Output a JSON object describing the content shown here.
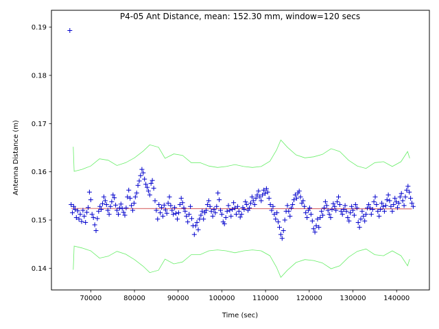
{
  "chart_data": {
    "type": "scatter",
    "title": "P4-05 Ant Distance, mean: 152.30 mm, window=120 secs",
    "xlabel": "Time (sec)",
    "ylabel": "Antenna Distance (m)",
    "xlim": [
      61000,
      147500
    ],
    "ylim": [
      0.1355,
      0.1935
    ],
    "xticks": [
      70000,
      80000,
      90000,
      100000,
      110000,
      120000,
      130000,
      140000
    ],
    "xtick_labels": [
      "70000",
      "80000",
      "90000",
      "100000",
      "110000",
      "120000",
      "130000",
      "140000"
    ],
    "yticks": [
      0.14,
      0.15,
      0.16,
      0.17,
      0.18,
      0.19
    ],
    "ytick_labels": [
      "0.14",
      "0.15",
      "0.16",
      "0.17",
      "0.18",
      "0.19"
    ],
    "grid": false,
    "colors": {
      "points": "#0000cc",
      "mean_line": "#cc3333",
      "band": "#66ee66",
      "axes": "#000000"
    },
    "mean_line": {
      "x": [
        65500,
        143500
      ],
      "y": [
        0.1524,
        0.1523
      ]
    },
    "upper_band": {
      "x": [
        66000,
        66200,
        68000,
        70000,
        72000,
        74000,
        76000,
        78000,
        80000,
        82000,
        83500,
        85500,
        87000,
        89000,
        91000,
        93000,
        95000,
        97000,
        99000,
        101000,
        103000,
        105000,
        107000,
        109000,
        111000,
        112500,
        113500,
        115000,
        117000,
        119000,
        121000,
        123000,
        125000,
        127000,
        129000,
        131000,
        133000,
        135000,
        137000,
        139000,
        141000,
        142500,
        143000
      ],
      "y": [
        0.1652,
        0.1601,
        0.1605,
        0.1612,
        0.1627,
        0.1624,
        0.1613,
        0.1619,
        0.1629,
        0.1643,
        0.1656,
        0.1651,
        0.1628,
        0.1637,
        0.1634,
        0.1619,
        0.1619,
        0.1612,
        0.1609,
        0.1611,
        0.1615,
        0.1611,
        0.1609,
        0.1611,
        0.1622,
        0.1645,
        0.1666,
        0.1651,
        0.1635,
        0.1629,
        0.1631,
        0.1636,
        0.1648,
        0.1642,
        0.1624,
        0.1612,
        0.1607,
        0.1619,
        0.1621,
        0.1611,
        0.1621,
        0.1642,
        0.1628
      ]
    },
    "lower_band": {
      "x": [
        66000,
        66200,
        68000,
        70000,
        72000,
        74000,
        76000,
        78000,
        80000,
        82000,
        83500,
        85500,
        87000,
        89000,
        91000,
        93000,
        95000,
        97000,
        99000,
        101000,
        103000,
        105000,
        107000,
        109000,
        111000,
        112500,
        113500,
        115000,
        117000,
        119000,
        121000,
        123000,
        125000,
        127000,
        129000,
        131000,
        133000,
        135000,
        137000,
        139000,
        141000,
        142500,
        143000
      ],
      "y": [
        0.1397,
        0.1446,
        0.1442,
        0.1436,
        0.1421,
        0.1425,
        0.1435,
        0.1429,
        0.1418,
        0.1404,
        0.1391,
        0.1396,
        0.1419,
        0.1409,
        0.1413,
        0.1428,
        0.1428,
        0.1436,
        0.1438,
        0.1436,
        0.1432,
        0.1436,
        0.1438,
        0.1436,
        0.1426,
        0.1402,
        0.1381,
        0.1396,
        0.1412,
        0.1418,
        0.1416,
        0.1411,
        0.1399,
        0.1405,
        0.1423,
        0.1435,
        0.144,
        0.1428,
        0.1426,
        0.1436,
        0.1426,
        0.1405,
        0.1419
      ]
    },
    "points": [
      [
        65200,
        0.1893
      ],
      [
        65500,
        0.1532
      ],
      [
        65800,
        0.1515
      ],
      [
        66100,
        0.1528
      ],
      [
        66400,
        0.1522
      ],
      [
        66700,
        0.1505
      ],
      [
        67000,
        0.1519
      ],
      [
        67300,
        0.1502
      ],
      [
        67600,
        0.1512
      ],
      [
        67900,
        0.1497
      ],
      [
        68200,
        0.152
      ],
      [
        68500,
        0.1508
      ],
      [
        68800,
        0.1495
      ],
      [
        69100,
        0.1516
      ],
      [
        69400,
        0.1526
      ],
      [
        69700,
        0.1558
      ],
      [
        70000,
        0.1542
      ],
      [
        70300,
        0.1512
      ],
      [
        70600,
        0.1505
      ],
      [
        70900,
        0.149
      ],
      [
        71200,
        0.1478
      ],
      [
        71500,
        0.1503
      ],
      [
        71800,
        0.1518
      ],
      [
        72100,
        0.1528
      ],
      [
        72400,
        0.1522
      ],
      [
        72700,
        0.1534
      ],
      [
        73000,
        0.1548
      ],
      [
        73300,
        0.154
      ],
      [
        73600,
        0.1532
      ],
      [
        73900,
        0.152
      ],
      [
        74200,
        0.1512
      ],
      [
        74500,
        0.1528
      ],
      [
        74800,
        0.1538
      ],
      [
        75100,
        0.1552
      ],
      [
        75400,
        0.1546
      ],
      [
        75700,
        0.1531
      ],
      [
        76000,
        0.152
      ],
      [
        76300,
        0.1512
      ],
      [
        76600,
        0.1525
      ],
      [
        76900,
        0.1533
      ],
      [
        77200,
        0.1524
      ],
      [
        77500,
        0.1516
      ],
      [
        77800,
        0.151
      ],
      [
        78100,
        0.1525
      ],
      [
        78400,
        0.1548
      ],
      [
        78700,
        0.1562
      ],
      [
        79000,
        0.1545
      ],
      [
        79300,
        0.153
      ],
      [
        79600,
        0.152
      ],
      [
        79900,
        0.1535
      ],
      [
        80200,
        0.1548
      ],
      [
        80500,
        0.1556
      ],
      [
        80800,
        0.1572
      ],
      [
        81100,
        0.1581
      ],
      [
        81400,
        0.1592
      ],
      [
        81700,
        0.1605
      ],
      [
        82000,
        0.1598
      ],
      [
        82300,
        0.1585
      ],
      [
        82600,
        0.1574
      ],
      [
        82900,
        0.1568
      ],
      [
        83200,
        0.156
      ],
      [
        83500,
        0.1552
      ],
      [
        83800,
        0.1576
      ],
      [
        84100,
        0.1582
      ],
      [
        84400,
        0.1566
      ],
      [
        84700,
        0.154
      ],
      [
        85000,
        0.152
      ],
      [
        85300,
        0.1502
      ],
      [
        85600,
        0.1532
      ],
      [
        85900,
        0.1515
      ],
      [
        86200,
        0.1526
      ],
      [
        86500,
        0.1508
      ],
      [
        86800,
        0.1531
      ],
      [
        87100,
        0.1521
      ],
      [
        87400,
        0.1514
      ],
      [
        87700,
        0.1535
      ],
      [
        88000,
        0.1548
      ],
      [
        88300,
        0.153
      ],
      [
        88600,
        0.152
      ],
      [
        88900,
        0.1512
      ],
      [
        89200,
        0.1526
      ],
      [
        89500,
        0.1514
      ],
      [
        89800,
        0.1502
      ],
      [
        90100,
        0.1515
      ],
      [
        90400,
        0.1532
      ],
      [
        90700,
        0.1545
      ],
      [
        91000,
        0.1536
      ],
      [
        91300,
        0.1525
      ],
      [
        91600,
        0.1518
      ],
      [
        91900,
        0.1508
      ],
      [
        92200,
        0.1496
      ],
      [
        92500,
        0.1512
      ],
      [
        92800,
        0.1528
      ],
      [
        93100,
        0.1503
      ],
      [
        93400,
        0.1488
      ],
      [
        93700,
        0.147
      ],
      [
        94000,
        0.1488
      ],
      [
        94300,
        0.1495
      ],
      [
        94600,
        0.148
      ],
      [
        94900,
        0.1502
      ],
      [
        95200,
        0.151
      ],
      [
        95500,
        0.1518
      ],
      [
        95800,
        0.1502
      ],
      [
        96100,
        0.1515
      ],
      [
        96400,
        0.152
      ],
      [
        96700,
        0.1532
      ],
      [
        97000,
        0.154
      ],
      [
        97300,
        0.1528
      ],
      [
        97600,
        0.1518
      ],
      [
        97900,
        0.1508
      ],
      [
        98200,
        0.1522
      ],
      [
        98500,
        0.1515
      ],
      [
        98800,
        0.1528
      ],
      [
        99100,
        0.1556
      ],
      [
        99400,
        0.1542
      ],
      [
        99700,
        0.152
      ],
      [
        100000,
        0.1512
      ],
      [
        100300,
        0.1496
      ],
      [
        100600,
        0.1492
      ],
      [
        100900,
        0.1505
      ],
      [
        101200,
        0.1518
      ],
      [
        101500,
        0.153
      ],
      [
        101800,
        0.152
      ],
      [
        102100,
        0.1508
      ],
      [
        102400,
        0.1522
      ],
      [
        102700,
        0.1536
      ],
      [
        103000,
        0.1525
      ],
      [
        103300,
        0.1512
      ],
      [
        103600,
        0.1528
      ],
      [
        103900,
        0.1518
      ],
      [
        104200,
        0.1506
      ],
      [
        104500,
        0.1512
      ],
      [
        104800,
        0.1526
      ],
      [
        105100,
        0.1522
      ],
      [
        105400,
        0.1538
      ],
      [
        105700,
        0.1532
      ],
      [
        106000,
        0.152
      ],
      [
        106300,
        0.1525
      ],
      [
        106600,
        0.1535
      ],
      [
        106900,
        0.1548
      ],
      [
        107200,
        0.154
      ],
      [
        107500,
        0.1532
      ],
      [
        107800,
        0.1545
      ],
      [
        108100,
        0.1552
      ],
      [
        108400,
        0.156
      ],
      [
        108700,
        0.1548
      ],
      [
        109000,
        0.154
      ],
      [
        109300,
        0.1552
      ],
      [
        109600,
        0.1562
      ],
      [
        109900,
        0.1555
      ],
      [
        110200,
        0.1565
      ],
      [
        110500,
        0.1558
      ],
      [
        110800,
        0.1545
      ],
      [
        111100,
        0.1532
      ],
      [
        111400,
        0.152
      ],
      [
        111700,
        0.1528
      ],
      [
        112000,
        0.1512
      ],
      [
        112300,
        0.1502
      ],
      [
        112600,
        0.1515
      ],
      [
        112900,
        0.1496
      ],
      [
        113200,
        0.1485
      ],
      [
        113500,
        0.147
      ],
      [
        113800,
        0.1462
      ],
      [
        114100,
        0.1478
      ],
      [
        114400,
        0.15
      ],
      [
        114700,
        0.1518
      ],
      [
        115000,
        0.153
      ],
      [
        115300,
        0.1518
      ],
      [
        115600,
        0.1508
      ],
      [
        115900,
        0.1525
      ],
      [
        116200,
        0.1532
      ],
      [
        116500,
        0.1542
      ],
      [
        116800,
        0.1552
      ],
      [
        117100,
        0.1545
      ],
      [
        117400,
        0.1556
      ],
      [
        117700,
        0.156
      ],
      [
        118000,
        0.1548
      ],
      [
        118300,
        0.1535
      ],
      [
        118600,
        0.154
      ],
      [
        118900,
        0.1528
      ],
      [
        119200,
        0.1515
      ],
      [
        119500,
        0.1505
      ],
      [
        119800,
        0.152
      ],
      [
        120100,
        0.1525
      ],
      [
        120400,
        0.1512
      ],
      [
        120700,
        0.1498
      ],
      [
        121000,
        0.1482
      ],
      [
        121300,
        0.1475
      ],
      [
        121600,
        0.1488
      ],
      [
        121900,
        0.1502
      ],
      [
        122200,
        0.1485
      ],
      [
        122500,
        0.1505
      ],
      [
        122800,
        0.1518
      ],
      [
        123100,
        0.151
      ],
      [
        123400,
        0.1525
      ],
      [
        123700,
        0.1538
      ],
      [
        124000,
        0.153
      ],
      [
        124300,
        0.152
      ],
      [
        124600,
        0.1512
      ],
      [
        124900,
        0.1505
      ],
      [
        125200,
        0.1522
      ],
      [
        125500,
        0.1534
      ],
      [
        125800,
        0.1528
      ],
      [
        126100,
        0.152
      ],
      [
        126400,
        0.1538
      ],
      [
        126700,
        0.1548
      ],
      [
        127000,
        0.1532
      ],
      [
        127300,
        0.1518
      ],
      [
        127600,
        0.1512
      ],
      [
        127900,
        0.1522
      ],
      [
        128200,
        0.153
      ],
      [
        128500,
        0.1518
      ],
      [
        128800,
        0.1505
      ],
      [
        129100,
        0.1498
      ],
      [
        129400,
        0.1515
      ],
      [
        129700,
        0.1528
      ],
      [
        130000,
        0.152
      ],
      [
        130300,
        0.151
      ],
      [
        130600,
        0.1532
      ],
      [
        130900,
        0.1525
      ],
      [
        131200,
        0.1495
      ],
      [
        131500,
        0.1485
      ],
      [
        131800,
        0.1502
      ],
      [
        132100,
        0.1518
      ],
      [
        132400,
        0.1508
      ],
      [
        132700,
        0.1498
      ],
      [
        133000,
        0.1512
      ],
      [
        133300,
        0.1525
      ],
      [
        133600,
        0.1532
      ],
      [
        133900,
        0.1525
      ],
      [
        134200,
        0.1512
      ],
      [
        134500,
        0.1522
      ],
      [
        134800,
        0.1538
      ],
      [
        135100,
        0.1548
      ],
      [
        135400,
        0.1532
      ],
      [
        135700,
        0.1518
      ],
      [
        136000,
        0.1508
      ],
      [
        136300,
        0.1522
      ],
      [
        136600,
        0.1535
      ],
      [
        136900,
        0.1528
      ],
      [
        137200,
        0.1518
      ],
      [
        137500,
        0.153
      ],
      [
        137800,
        0.1542
      ],
      [
        138100,
        0.1552
      ],
      [
        138400,
        0.154
      ],
      [
        138700,
        0.1528
      ],
      [
        139000,
        0.1518
      ],
      [
        139300,
        0.1532
      ],
      [
        139600,
        0.1545
      ],
      [
        139900,
        0.1538
      ],
      [
        140200,
        0.1526
      ],
      [
        140500,
        0.1535
      ],
      [
        140800,
        0.1548
      ],
      [
        141100,
        0.1555
      ],
      [
        141400,
        0.154
      ],
      [
        141700,
        0.153
      ],
      [
        142000,
        0.1548
      ],
      [
        142300,
        0.1562
      ],
      [
        142600,
        0.157
      ],
      [
        142900,
        0.1558
      ],
      [
        143200,
        0.1545
      ],
      [
        143500,
        0.1535
      ],
      [
        143800,
        0.1528
      ]
    ]
  }
}
